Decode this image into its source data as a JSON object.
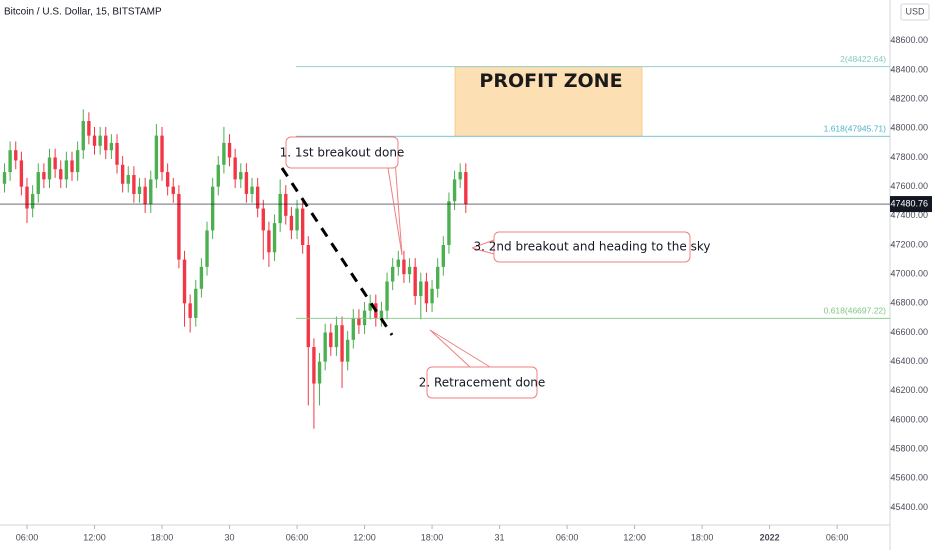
{
  "chart_data": {
    "type": "candlestick",
    "title": "Bitcoin / U.S. Dollar, 15, BITSTAMP",
    "currency": "USD",
    "up_color": "#4caf50",
    "down_color": "#f23645",
    "x": [
      4,
      4.5,
      5,
      5.5,
      6,
      6.5,
      7,
      7.5,
      8,
      8.5,
      9,
      9.5,
      10,
      10.5,
      11,
      11.5,
      12,
      12.5,
      13,
      13.5,
      14,
      14.5,
      15,
      15.5,
      16,
      16.5,
      17,
      17.5,
      18,
      18.5,
      19,
      19.5,
      20,
      20.5,
      21,
      21.5,
      22,
      22.5,
      23,
      23.5,
      24,
      24.5,
      25,
      25.5,
      26,
      26.5,
      27,
      27.5,
      28,
      28.5,
      29,
      29.5,
      30,
      30.5,
      31,
      31.5,
      32,
      32.5,
      33,
      33.5,
      34,
      34.5,
      35,
      35.5,
      36,
      36.5,
      37,
      37.5,
      38,
      38.5,
      39,
      39.5,
      40,
      40.5,
      41,
      41.5,
      42,
      42.5,
      43,
      43.5,
      44,
      44.5,
      45
    ],
    "open": [
      47620,
      47700,
      47850,
      47780,
      47600,
      47450,
      47550,
      47700,
      47650,
      47800,
      47720,
      47650,
      47780,
      47700,
      47850,
      48050,
      47950,
      47880,
      47950,
      47850,
      47900,
      47750,
      47620,
      47680,
      47550,
      47600,
      47480,
      47650,
      47950,
      47700,
      47600,
      47550,
      47100,
      46800,
      46700,
      46900,
      47050,
      47300,
      47600,
      47750,
      47900,
      47800,
      47650,
      47700,
      47550,
      47600,
      47450,
      47300,
      47150,
      47350,
      47550,
      47400,
      47300,
      47450,
      47200,
      46500,
      46250,
      46400,
      46600,
      46500,
      46650,
      46400,
      46550,
      46700,
      46650,
      46750,
      46800,
      46700,
      46750,
      46950,
      47050,
      47100,
      47000,
      47050,
      46850,
      46950,
      46800,
      46900,
      47050,
      47200,
      47500,
      47650,
      47700
    ],
    "high": [
      47760,
      47910,
      47910,
      47840,
      47660,
      47610,
      47760,
      47760,
      47860,
      47860,
      47780,
      47840,
      47840,
      47910,
      48130,
      48110,
      48010,
      48010,
      48010,
      47960,
      47960,
      47810,
      47740,
      47740,
      47660,
      47660,
      47710,
      48030,
      48010,
      47760,
      47660,
      47610,
      47160,
      46860,
      46960,
      47110,
      47360,
      47660,
      47810,
      48010,
      47960,
      47860,
      47760,
      47760,
      47660,
      47660,
      47510,
      47360,
      47410,
      47650,
      47610,
      47460,
      47510,
      47510,
      47260,
      46560,
      46460,
      46660,
      46660,
      46710,
      46710,
      46610,
      46760,
      46760,
      46810,
      46860,
      46860,
      46810,
      47010,
      47110,
      47160,
      47160,
      47110,
      47110,
      47010,
      47010,
      46960,
      47110,
      47260,
      47560,
      47710,
      47760,
      47760
    ],
    "low": [
      47560,
      47640,
      47720,
      47540,
      47350,
      47390,
      47490,
      47590,
      47590,
      47660,
      47590,
      47590,
      47640,
      47640,
      47790,
      47890,
      47820,
      47820,
      47790,
      47790,
      47690,
      47560,
      47560,
      47490,
      47490,
      47420,
      47420,
      47590,
      47640,
      47540,
      47490,
      47040,
      46640,
      46600,
      46640,
      46840,
      46990,
      47240,
      47540,
      47690,
      47740,
      47590,
      47590,
      47490,
      47490,
      47390,
      47100,
      47050,
      47090,
      47290,
      47340,
      47240,
      47240,
      47140,
      46100,
      45940,
      46100,
      46340,
      46440,
      46440,
      46220,
      46340,
      46490,
      46590,
      46590,
      46690,
      46640,
      46640,
      46690,
      46890,
      46990,
      46940,
      46940,
      46790,
      46690,
      46740,
      46740,
      46840,
      46990,
      47140,
      47440,
      47590,
      47420
    ],
    "close": [
      47700,
      47850,
      47780,
      47600,
      47450,
      47550,
      47700,
      47650,
      47800,
      47720,
      47650,
      47780,
      47700,
      47850,
      48050,
      47950,
      47880,
      47950,
      47850,
      47900,
      47750,
      47620,
      47680,
      47550,
      47600,
      47480,
      47650,
      47950,
      47700,
      47600,
      47550,
      47100,
      46800,
      46700,
      46900,
      47050,
      47300,
      47600,
      47750,
      47900,
      47800,
      47650,
      47700,
      47550,
      47600,
      47450,
      47300,
      47150,
      47350,
      47550,
      47400,
      47300,
      47450,
      47200,
      46500,
      46250,
      46400,
      46600,
      46500,
      46650,
      46400,
      46550,
      46700,
      46650,
      46750,
      46800,
      46700,
      46750,
      46950,
      47050,
      47100,
      47000,
      47050,
      46850,
      46950,
      46800,
      46900,
      47050,
      47200,
      47500,
      47650,
      47700,
      47480.76
    ],
    "xlim": [
      3.6,
      82.7
    ],
    "xticks": [
      {
        "value": 6,
        "label": "06:00"
      },
      {
        "value": 12,
        "label": "12:00"
      },
      {
        "value": 18,
        "label": "18:00"
      },
      {
        "value": 24,
        "label": "30"
      },
      {
        "value": 30,
        "label": "06:00"
      },
      {
        "value": 36,
        "label": "12:00"
      },
      {
        "value": 42,
        "label": "18:00"
      },
      {
        "value": 48,
        "label": "31"
      },
      {
        "value": 54,
        "label": "06:00"
      },
      {
        "value": 60,
        "label": "12:00"
      },
      {
        "value": 66,
        "label": "18:00"
      },
      {
        "value": 72,
        "label": "2022"
      },
      {
        "value": 78,
        "label": "06:00"
      }
    ],
    "ylim": [
      45280,
      48880
    ],
    "yticks": [
      {
        "value": 45400,
        "label": "45400.00"
      },
      {
        "value": 45600,
        "label": "45600.00"
      },
      {
        "value": 45800,
        "label": "45800.00"
      },
      {
        "value": 46000,
        "label": "46000.00"
      },
      {
        "value": 46200,
        "label": "46200.00"
      },
      {
        "value": 46400,
        "label": "46400.00"
      },
      {
        "value": 46600,
        "label": "46600.00"
      },
      {
        "value": 46800,
        "label": "46800.00"
      },
      {
        "value": 47000,
        "label": "47000.00"
      },
      {
        "value": 47200,
        "label": "47200.00"
      },
      {
        "value": 47400,
        "label": "47400.00"
      },
      {
        "value": 47600,
        "label": "47600.00"
      },
      {
        "value": 47800,
        "label": "47800.00"
      },
      {
        "value": 48000,
        "label": "48000.00"
      },
      {
        "value": 48200,
        "label": "48200.00"
      },
      {
        "value": 48400,
        "label": "48400.00"
      },
      {
        "value": 48600,
        "label": "48600.00"
      }
    ],
    "fib_levels": [
      {
        "value": 48422.64,
        "label": "2(48422.64)"
      },
      {
        "value": 47945.71,
        "label": "1.618(47945.71)"
      },
      {
        "value": 46697.22,
        "label": "0.618(46697.22)"
      }
    ],
    "profit_zone": "PROFIT ZONE",
    "annotations": [
      "1. 1st breakout done",
      "2. Retracement done",
      "3. 2nd breakout and heading to the sky"
    ]
  }
}
